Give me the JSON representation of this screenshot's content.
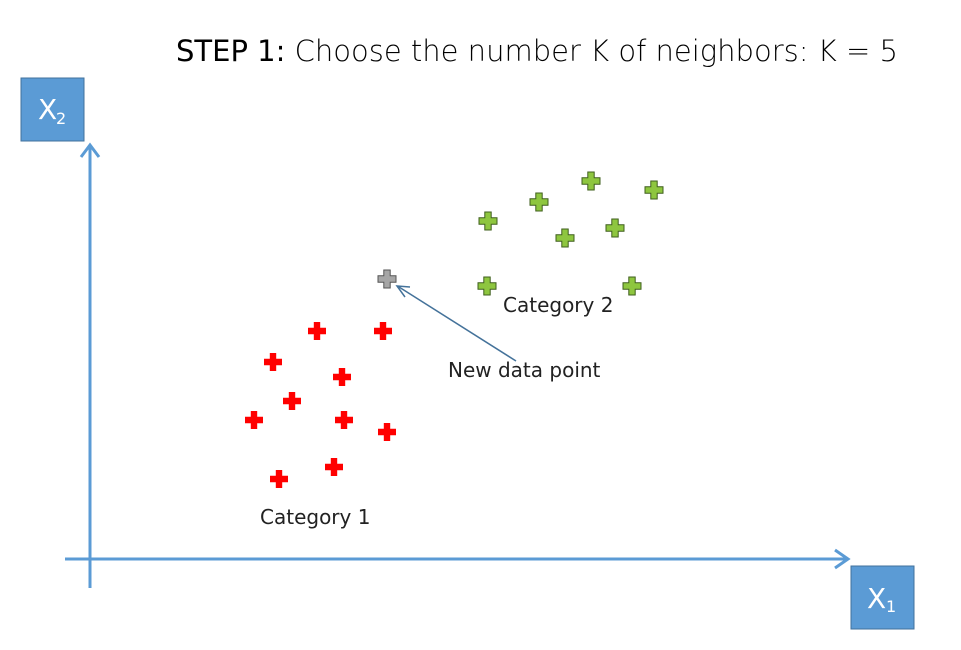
{
  "title": {
    "step": "STEP 1:",
    "text": " Choose the number K of neighbors: K = 5"
  },
  "axes": {
    "x": {
      "letter": "X",
      "subscript": "1"
    },
    "y": {
      "letter": "X",
      "subscript": "2"
    }
  },
  "labels": {
    "category1": "Category 1",
    "category2": "Category 2",
    "new_point": "New data point"
  },
  "colors": {
    "axis": "#5b9bd5",
    "axis_box": "#5b9bd5",
    "category1": "#ff0000",
    "category2": "#8ec63f",
    "new_point": "#a6a6a6",
    "arrow": "#44729a"
  }
}
